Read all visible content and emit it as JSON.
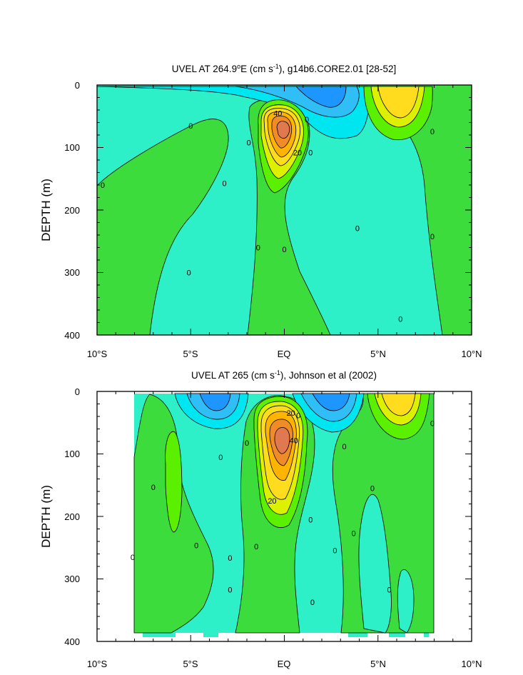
{
  "chart_data": [
    {
      "type": "contour",
      "title_main": "UVEL AT 264.9",
      "title_deg": "o",
      "title_mid": "E (cm s",
      "title_sup": "-1",
      "title_end": "), g14b6.CORE2.01 [28-52]",
      "ylabel": "DEPTH (m)",
      "xlabel": "",
      "x_ticks": [
        "10°S",
        "5°S",
        "EQ",
        "5°N",
        "10°N"
      ],
      "y_ticks": [
        "0",
        "100",
        "200",
        "300",
        "400"
      ],
      "xlim": [
        -10,
        10
      ],
      "ylim": [
        400,
        0
      ],
      "contour_labels": [
        {
          "text": "40",
          "lat": -0.35,
          "depth": 45
        },
        {
          "text": "20",
          "lat": 0.7,
          "depth": 108
        },
        {
          "text": "0",
          "lat": 1.2,
          "depth": 55
        },
        {
          "text": "0",
          "lat": -5.0,
          "depth": 65
        },
        {
          "text": "0",
          "lat": -1.9,
          "depth": 92
        },
        {
          "text": "0",
          "lat": 1.4,
          "depth": 108
        },
        {
          "text": "0",
          "lat": -3.2,
          "depth": 157
        },
        {
          "text": "0",
          "lat": -9.7,
          "depth": 160
        },
        {
          "text": "0",
          "lat": -1.4,
          "depth": 260
        },
        {
          "text": "0",
          "lat": 0.0,
          "depth": 263
        },
        {
          "text": "0",
          "lat": -5.1,
          "depth": 300
        },
        {
          "text": "0",
          "lat": 3.9,
          "depth": 229
        },
        {
          "text": "0",
          "lat": 7.9,
          "depth": 74
        },
        {
          "text": "0",
          "lat": 7.9,
          "depth": 242
        },
        {
          "text": "0",
          "lat": 6.2,
          "depth": 374
        }
      ]
    },
    {
      "type": "contour",
      "title_main": "UVEL AT 265 (cm s",
      "title_deg": "",
      "title_mid": "",
      "title_sup": "-1",
      "title_end": "), Johnson et al (2002)",
      "ylabel": "DEPTH (m)",
      "xlabel": "",
      "x_ticks": [
        "10°S",
        "5°S",
        "EQ",
        "5°N",
        "10°N"
      ],
      "y_ticks": [
        "0",
        "100",
        "200",
        "300",
        "400"
      ],
      "xlim": [
        -10,
        10
      ],
      "ylim": [
        400,
        0
      ],
      "contour_labels": [
        {
          "text": "20",
          "lat": 0.35,
          "depth": 34
        },
        {
          "text": "0",
          "lat": 0.75,
          "depth": 38
        },
        {
          "text": "40",
          "lat": 0.5,
          "depth": 78
        },
        {
          "text": "20",
          "lat": -0.65,
          "depth": 175
        },
        {
          "text": "0",
          "lat": -2.0,
          "depth": 82
        },
        {
          "text": "0",
          "lat": -3.4,
          "depth": 105
        },
        {
          "text": "0",
          "lat": -7.0,
          "depth": 153
        },
        {
          "text": "0",
          "lat": -8.1,
          "depth": 265
        },
        {
          "text": "0",
          "lat": -4.7,
          "depth": 246
        },
        {
          "text": "0",
          "lat": -2.9,
          "depth": 266
        },
        {
          "text": "0",
          "lat": -1.5,
          "depth": 248
        },
        {
          "text": "0",
          "lat": -2.9,
          "depth": 317
        },
        {
          "text": "0",
          "lat": 1.4,
          "depth": 205
        },
        {
          "text": "0",
          "lat": 1.5,
          "depth": 337
        },
        {
          "text": "0",
          "lat": 3.2,
          "depth": 88
        },
        {
          "text": "0",
          "lat": 4.7,
          "depth": 155
        },
        {
          "text": "0",
          "lat": 3.7,
          "depth": 227
        },
        {
          "text": "0",
          "lat": 2.7,
          "depth": 254
        },
        {
          "text": "0",
          "lat": 5.6,
          "depth": 317
        },
        {
          "text": "0",
          "lat": 7.9,
          "depth": 51
        }
      ]
    }
  ],
  "colors": {
    "fill_neg_strong": "#1e96ff",
    "fill_neg_mid": "#2fbef5",
    "fill_neg_weak": "#00e6f0",
    "fill_near_zero_neg": "#2ef0c8",
    "fill_near_zero_pos": "#3ddc3d",
    "fill_pos_weak": "#5af000",
    "fill_pos_mid": "#dcf000",
    "fill_pos_high": "#ffdc1e",
    "fill_pos_higher": "#ffb400",
    "fill_pos_max": "#f08c28",
    "fill_core": "#e07850"
  }
}
